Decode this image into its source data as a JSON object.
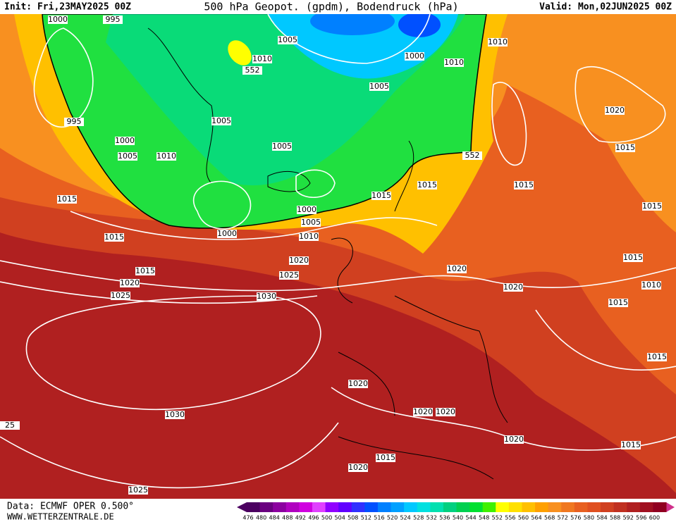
{
  "header": {
    "init": "Init: Fri,23MAY2025 00Z",
    "title": "500 hPa Geopot. (gpdm), Bodendruck (hPa)",
    "valid": "Valid: Mon,02JUN2025 00Z"
  },
  "footer": {
    "source": "Data: ECMWF OPER 0.500°",
    "site": "WWW.WETTERZENTRALE.DE"
  },
  "map": {
    "isobar_labels": [
      "1000",
      "995",
      "1005",
      "1010",
      "552",
      "1000",
      "1010",
      "1010",
      "1005",
      "995",
      "1005",
      "1000",
      "1005",
      "1010",
      "1005",
      "552",
      "1020",
      "1015",
      "1015",
      "1015",
      "1015",
      "1015",
      "1000",
      "1005",
      "1000",
      "1015",
      "1010",
      "1015",
      "1020",
      "1020",
      "1015",
      "1025",
      "1015",
      "1020",
      "1020",
      "1010",
      "1025",
      "1030",
      "1015",
      "1015",
      "1020",
      "1020",
      "1020",
      "1030",
      "25",
      "1020",
      "1015",
      "1015",
      "1020",
      "1025"
    ]
  },
  "colorbar": {
    "values": [
      476,
      480,
      484,
      488,
      492,
      496,
      500,
      504,
      508,
      512,
      516,
      520,
      524,
      528,
      532,
      536,
      540,
      544,
      548,
      552,
      556,
      560,
      564,
      568,
      572,
      576,
      580,
      584,
      588,
      592,
      596,
      600
    ],
    "colors": [
      "#4b0060",
      "#6a0080",
      "#8c00a0",
      "#b000c0",
      "#d000e0",
      "#e040ff",
      "#9000ff",
      "#6000ff",
      "#3030ff",
      "#0050ff",
      "#0080ff",
      "#00a0ff",
      "#00c8ff",
      "#00e0e0",
      "#00e0b0",
      "#00d080",
      "#00d050",
      "#00e030",
      "#40f000",
      "#ffff00",
      "#ffe000",
      "#ffc000",
      "#ffa000",
      "#f89020",
      "#f07820",
      "#e86020",
      "#e05020",
      "#d04020",
      "#c03020",
      "#b02020",
      "#a01020",
      "#900020"
    ]
  }
}
